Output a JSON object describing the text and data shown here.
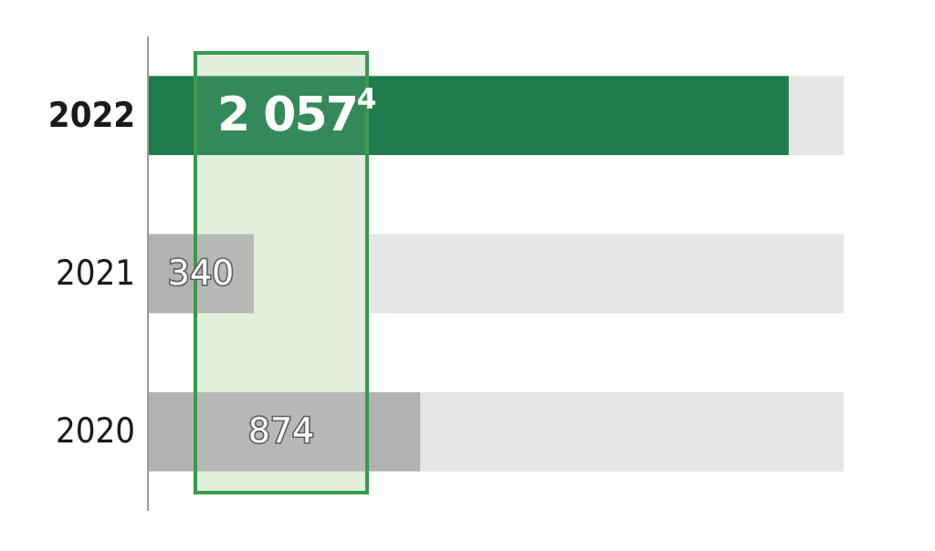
{
  "chart_data": {
    "type": "bar",
    "orientation": "horizontal",
    "categories": [
      "2022",
      "2021",
      "2020"
    ],
    "values": [
      2057,
      340,
      874
    ],
    "colors": [
      "#1e7b4c",
      "#b2b2b2",
      "#b2b2b2"
    ],
    "value_labels": [
      "2 057$^{4}$",
      "340",
      "874"
    ]
  }
}
